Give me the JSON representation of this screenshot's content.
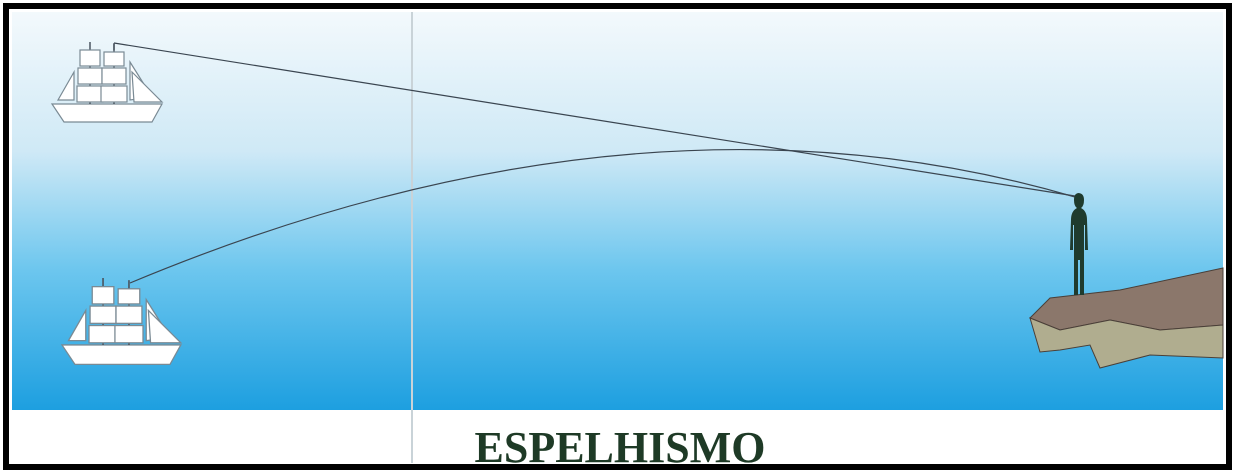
{
  "title": "ESPELHISMO"
}
